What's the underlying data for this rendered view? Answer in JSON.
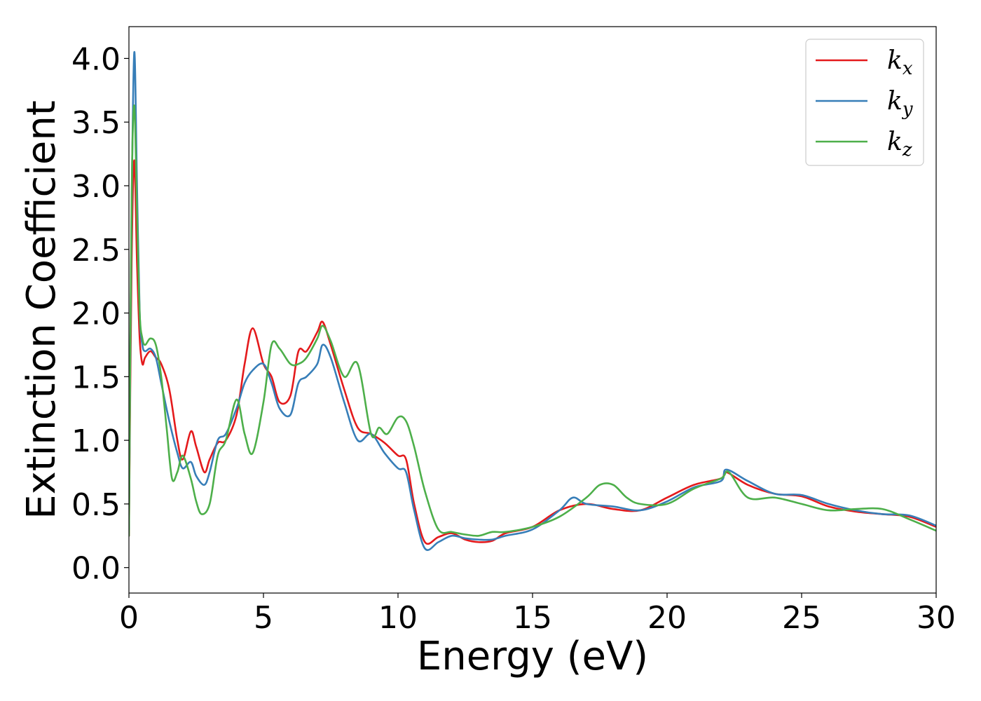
{
  "chart_data": {
    "type": "line",
    "xlabel": "Energy (eV)",
    "ylabel": "Extinction Coefficient",
    "xlim": [
      0,
      30
    ],
    "ylim": [
      -0.2,
      4.25
    ],
    "x_ticks": [
      0,
      5,
      10,
      15,
      20,
      25,
      30
    ],
    "x_tick_labels": [
      "0",
      "5",
      "10",
      "15",
      "20",
      "25",
      "30"
    ],
    "y_ticks": [
      0.0,
      0.5,
      1.0,
      1.5,
      2.0,
      2.5,
      3.0,
      3.5,
      4.0
    ],
    "y_tick_labels": [
      "0.0",
      "0.5",
      "1.0",
      "1.5",
      "2.0",
      "2.5",
      "3.0",
      "3.5",
      "4.0"
    ],
    "grid": false,
    "legend_position": "top-right",
    "series": [
      {
        "name": "k",
        "subscript": "x",
        "color": "#e41a1c",
        "x": [
          0,
          0.1,
          0.2,
          0.3,
          0.4,
          0.5,
          0.6,
          0.8,
          1.0,
          1.2,
          1.5,
          1.8,
          2.0,
          2.3,
          2.5,
          2.8,
          3.0,
          3.3,
          3.6,
          4.0,
          4.3,
          4.6,
          5.0,
          5.3,
          5.6,
          6.0,
          6.3,
          6.6,
          7.0,
          7.2,
          7.5,
          8.0,
          8.5,
          9.0,
          9.5,
          10.0,
          10.3,
          10.6,
          11.0,
          11.5,
          12.0,
          12.5,
          13.0,
          13.5,
          14.0,
          15.0,
          16.0,
          17.0,
          18.0,
          19.0,
          20.0,
          21.0,
          22.0,
          22.2,
          23.0,
          24.0,
          25.0,
          26.0,
          27.0,
          28.0,
          29.0,
          30.0
        ],
        "y": [
          0.25,
          2.4,
          3.2,
          2.4,
          1.8,
          1.6,
          1.65,
          1.7,
          1.65,
          1.6,
          1.4,
          1.0,
          0.85,
          1.07,
          0.95,
          0.75,
          0.85,
          0.98,
          1.0,
          1.2,
          1.6,
          1.88,
          1.6,
          1.5,
          1.3,
          1.35,
          1.7,
          1.7,
          1.85,
          1.93,
          1.75,
          1.4,
          1.1,
          1.05,
          0.98,
          0.88,
          0.85,
          0.5,
          0.2,
          0.24,
          0.27,
          0.22,
          0.2,
          0.21,
          0.27,
          0.32,
          0.45,
          0.5,
          0.46,
          0.45,
          0.55,
          0.65,
          0.7,
          0.75,
          0.65,
          0.58,
          0.56,
          0.48,
          0.44,
          0.42,
          0.4,
          0.32
        ]
      },
      {
        "name": "k",
        "subscript": "y",
        "color": "#377eb8",
        "x": [
          0,
          0.1,
          0.2,
          0.3,
          0.4,
          0.5,
          0.6,
          0.8,
          1.0,
          1.2,
          1.5,
          1.8,
          2.0,
          2.3,
          2.5,
          2.8,
          3.0,
          3.3,
          3.6,
          4.0,
          4.3,
          4.6,
          5.0,
          5.3,
          5.6,
          6.0,
          6.3,
          6.6,
          7.0,
          7.2,
          7.5,
          8.0,
          8.5,
          9.0,
          9.5,
          10.0,
          10.3,
          10.6,
          11.0,
          11.5,
          12.0,
          12.5,
          13.0,
          13.5,
          14.0,
          15.0,
          16.0,
          16.5,
          17.0,
          18.0,
          19.0,
          20.0,
          21.0,
          22.0,
          22.2,
          23.0,
          24.0,
          25.0,
          26.0,
          27.0,
          28.0,
          29.0,
          30.0
        ],
        "y": [
          0.3,
          2.8,
          4.05,
          3.0,
          2.0,
          1.75,
          1.7,
          1.72,
          1.65,
          1.45,
          1.15,
          0.9,
          0.78,
          0.83,
          0.72,
          0.65,
          0.75,
          1.0,
          1.05,
          1.25,
          1.45,
          1.55,
          1.6,
          1.45,
          1.25,
          1.2,
          1.45,
          1.5,
          1.6,
          1.75,
          1.65,
          1.3,
          1.0,
          1.05,
          0.9,
          0.78,
          0.75,
          0.45,
          0.15,
          0.2,
          0.25,
          0.23,
          0.22,
          0.22,
          0.25,
          0.3,
          0.45,
          0.55,
          0.5,
          0.48,
          0.45,
          0.52,
          0.63,
          0.68,
          0.77,
          0.68,
          0.58,
          0.57,
          0.5,
          0.45,
          0.42,
          0.41,
          0.33
        ]
      },
      {
        "name": "k",
        "subscript": "z",
        "color": "#4daf4a",
        "x": [
          0,
          0.1,
          0.2,
          0.3,
          0.4,
          0.5,
          0.6,
          0.8,
          1.0,
          1.2,
          1.4,
          1.6,
          1.8,
          2.0,
          2.3,
          2.5,
          2.7,
          3.0,
          3.3,
          3.6,
          4.0,
          4.3,
          4.6,
          5.0,
          5.3,
          5.6,
          6.0,
          6.3,
          6.6,
          7.0,
          7.2,
          7.5,
          8.0,
          8.5,
          9.0,
          9.3,
          9.6,
          10.0,
          10.3,
          10.6,
          11.0,
          11.5,
          12.0,
          12.5,
          13.0,
          13.5,
          14.0,
          15.0,
          16.0,
          17.0,
          17.5,
          18.0,
          18.5,
          19.0,
          20.0,
          21.0,
          22.0,
          22.3,
          23.0,
          24.0,
          25.0,
          26.0,
          27.0,
          28.0,
          29.0,
          30.0
        ],
        "y": [
          0.25,
          2.9,
          3.63,
          2.8,
          2.0,
          1.8,
          1.75,
          1.8,
          1.75,
          1.5,
          1.1,
          0.7,
          0.75,
          0.88,
          0.7,
          0.52,
          0.42,
          0.5,
          0.88,
          1.0,
          1.32,
          1.05,
          0.9,
          1.3,
          1.75,
          1.72,
          1.6,
          1.6,
          1.65,
          1.8,
          1.9,
          1.78,
          1.5,
          1.6,
          1.05,
          1.1,
          1.05,
          1.18,
          1.15,
          0.95,
          0.6,
          0.3,
          0.28,
          0.26,
          0.25,
          0.28,
          0.28,
          0.32,
          0.4,
          0.55,
          0.65,
          0.65,
          0.55,
          0.5,
          0.5,
          0.62,
          0.7,
          0.75,
          0.55,
          0.55,
          0.5,
          0.45,
          0.46,
          0.46,
          0.38,
          0.29
        ]
      }
    ]
  }
}
